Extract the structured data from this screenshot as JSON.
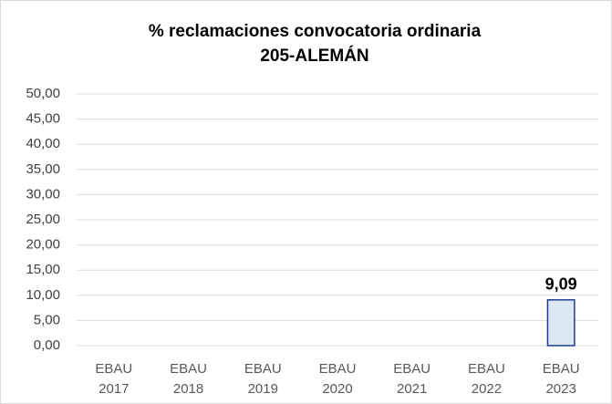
{
  "chart_data": {
    "type": "bar",
    "title": "% reclamaciones convocatoria ordinaria",
    "subtitle": "205-ALEMÁN",
    "categories": [
      "EBAU 2017",
      "EBAU 2018",
      "EBAU 2019",
      "EBAU 2020",
      "EBAU 2021",
      "EBAU 2022",
      "EBAU 2023"
    ],
    "values": [
      null,
      null,
      null,
      null,
      null,
      null,
      9.09
    ],
    "value_labels": [
      null,
      null,
      null,
      null,
      null,
      null,
      "9,09"
    ],
    "color": "#dde8f5",
    "edge_color": "#1f3c88",
    "ylim": [
      0,
      50
    ],
    "yticks": [
      {
        "value": 0,
        "label": "0,00"
      },
      {
        "value": 5,
        "label": "5,00"
      },
      {
        "value": 10,
        "label": "10,00"
      },
      {
        "value": 15,
        "label": "15,00"
      },
      {
        "value": 20,
        "label": "20,00"
      },
      {
        "value": 25,
        "label": "25,00"
      },
      {
        "value": 30,
        "label": "30,00"
      },
      {
        "value": 35,
        "label": "35,00"
      },
      {
        "value": 40,
        "label": "40,00"
      },
      {
        "value": 45,
        "label": "45,00"
      },
      {
        "value": 50,
        "label": "50,00"
      }
    ],
    "grid": true
  }
}
